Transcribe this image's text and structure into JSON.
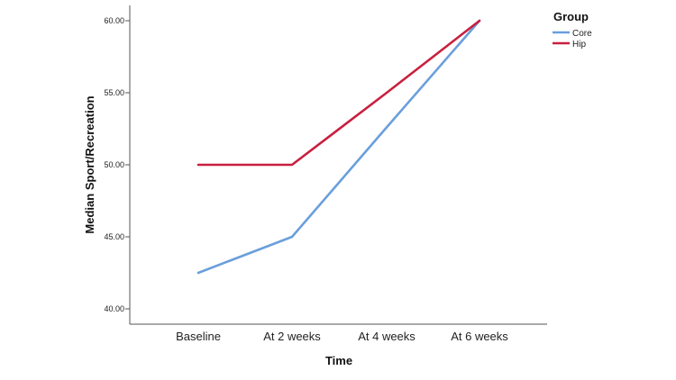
{
  "chart_data": {
    "type": "line",
    "categories": [
      "Baseline",
      "At 2 weeks",
      "At 4 weeks",
      "At 6 weeks"
    ],
    "series": [
      {
        "name": "Core",
        "values": [
          42.5,
          45.0,
          52.6,
          60.0
        ],
        "color": "#6a9fdc"
      },
      {
        "name": "Hip",
        "values": [
          50.0,
          50.0,
          55.0,
          60.0
        ],
        "color": "#c8203f"
      }
    ],
    "ylim": [
      40,
      60
    ],
    "yticks": [
      "40.00",
      "45.00",
      "50.00",
      "55.00",
      "60.00"
    ],
    "xlabel": "Time",
    "ylabel": "Median Sport/Recreation",
    "legend_title": "Group",
    "legend_position": "top-right",
    "grid": false
  }
}
